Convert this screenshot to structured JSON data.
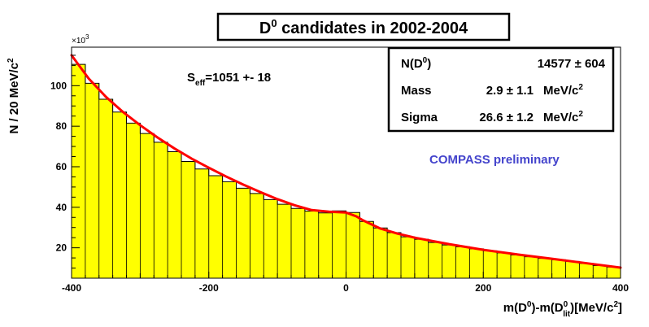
{
  "chart_data": {
    "type": "histogram",
    "title": "D⁰ candidates in 2002-2004",
    "ylabel": "N / 20 MeV/c²",
    "xlabel": "m(D⁰)-m(D⁰lit)[MeV/c²]",
    "y_multiplier": "×10³",
    "xlim": [
      -400,
      400
    ],
    "ylim": [
      5,
      119
    ],
    "x_ticks": [
      -400,
      -200,
      0,
      200,
      400
    ],
    "y_ticks": [
      20,
      40,
      60,
      80,
      100
    ],
    "bin_width": 20,
    "bins": {
      "x_centers": [
        -390,
        -370,
        -350,
        -330,
        -310,
        -290,
        -270,
        -250,
        -230,
        -210,
        -190,
        -170,
        -150,
        -130,
        -110,
        -90,
        -70,
        -50,
        -30,
        -10,
        10,
        30,
        50,
        70,
        90,
        110,
        130,
        150,
        170,
        190,
        210,
        230,
        250,
        270,
        290,
        310,
        330,
        350,
        370,
        390
      ],
      "values": [
        110.5,
        101.2,
        93.3,
        87.0,
        81.5,
        76.4,
        72.1,
        67.4,
        62.6,
        58.9,
        55.6,
        52.6,
        49.4,
        46.8,
        43.8,
        41.5,
        39.4,
        38.1,
        37.2,
        38.2,
        37.4,
        33.0,
        29.8,
        27.5,
        25.4,
        24.2,
        22.6,
        21.4,
        20.5,
        19.5,
        18.5,
        17.5,
        16.5,
        15.6,
        14.8,
        14.1,
        13.3,
        12.3,
        11.2,
        10.5
      ]
    },
    "fit_curve": {
      "x": [
        -400,
        -375,
        -350,
        -325,
        -300,
        -275,
        -250,
        -225,
        -200,
        -175,
        -150,
        -125,
        -100,
        -75,
        -50,
        -25,
        0,
        15,
        25,
        50,
        75,
        100,
        150,
        200,
        250,
        300,
        350,
        400
      ],
      "y": [
        115.0,
        103.5,
        94.5,
        87.0,
        80.5,
        74.5,
        69.0,
        64.0,
        59.5,
        55.2,
        51.2,
        47.5,
        44.0,
        41.0,
        38.6,
        37.8,
        37.4,
        35.5,
        33.5,
        29.5,
        27.0,
        25.0,
        21.8,
        19.0,
        16.7,
        14.6,
        12.4,
        10.2
      ]
    },
    "fit_results": {
      "rows": [
        {
          "label": "N(D⁰)",
          "value": "14577 ± 604"
        },
        {
          "label": "Mass",
          "value": "2.9 ± 1.1",
          "unit": "MeV/c²"
        },
        {
          "label": "Sigma",
          "value": "26.6 ± 1.2",
          "unit": "MeV/c²"
        }
      ]
    },
    "annotations": {
      "seff": "Seff=1051 +- 18",
      "preliminary": "COMPASS preliminary"
    },
    "colors": {
      "fill": "#ffff00",
      "fit_line": "#ff0000",
      "preliminary": "#4444cc"
    }
  }
}
